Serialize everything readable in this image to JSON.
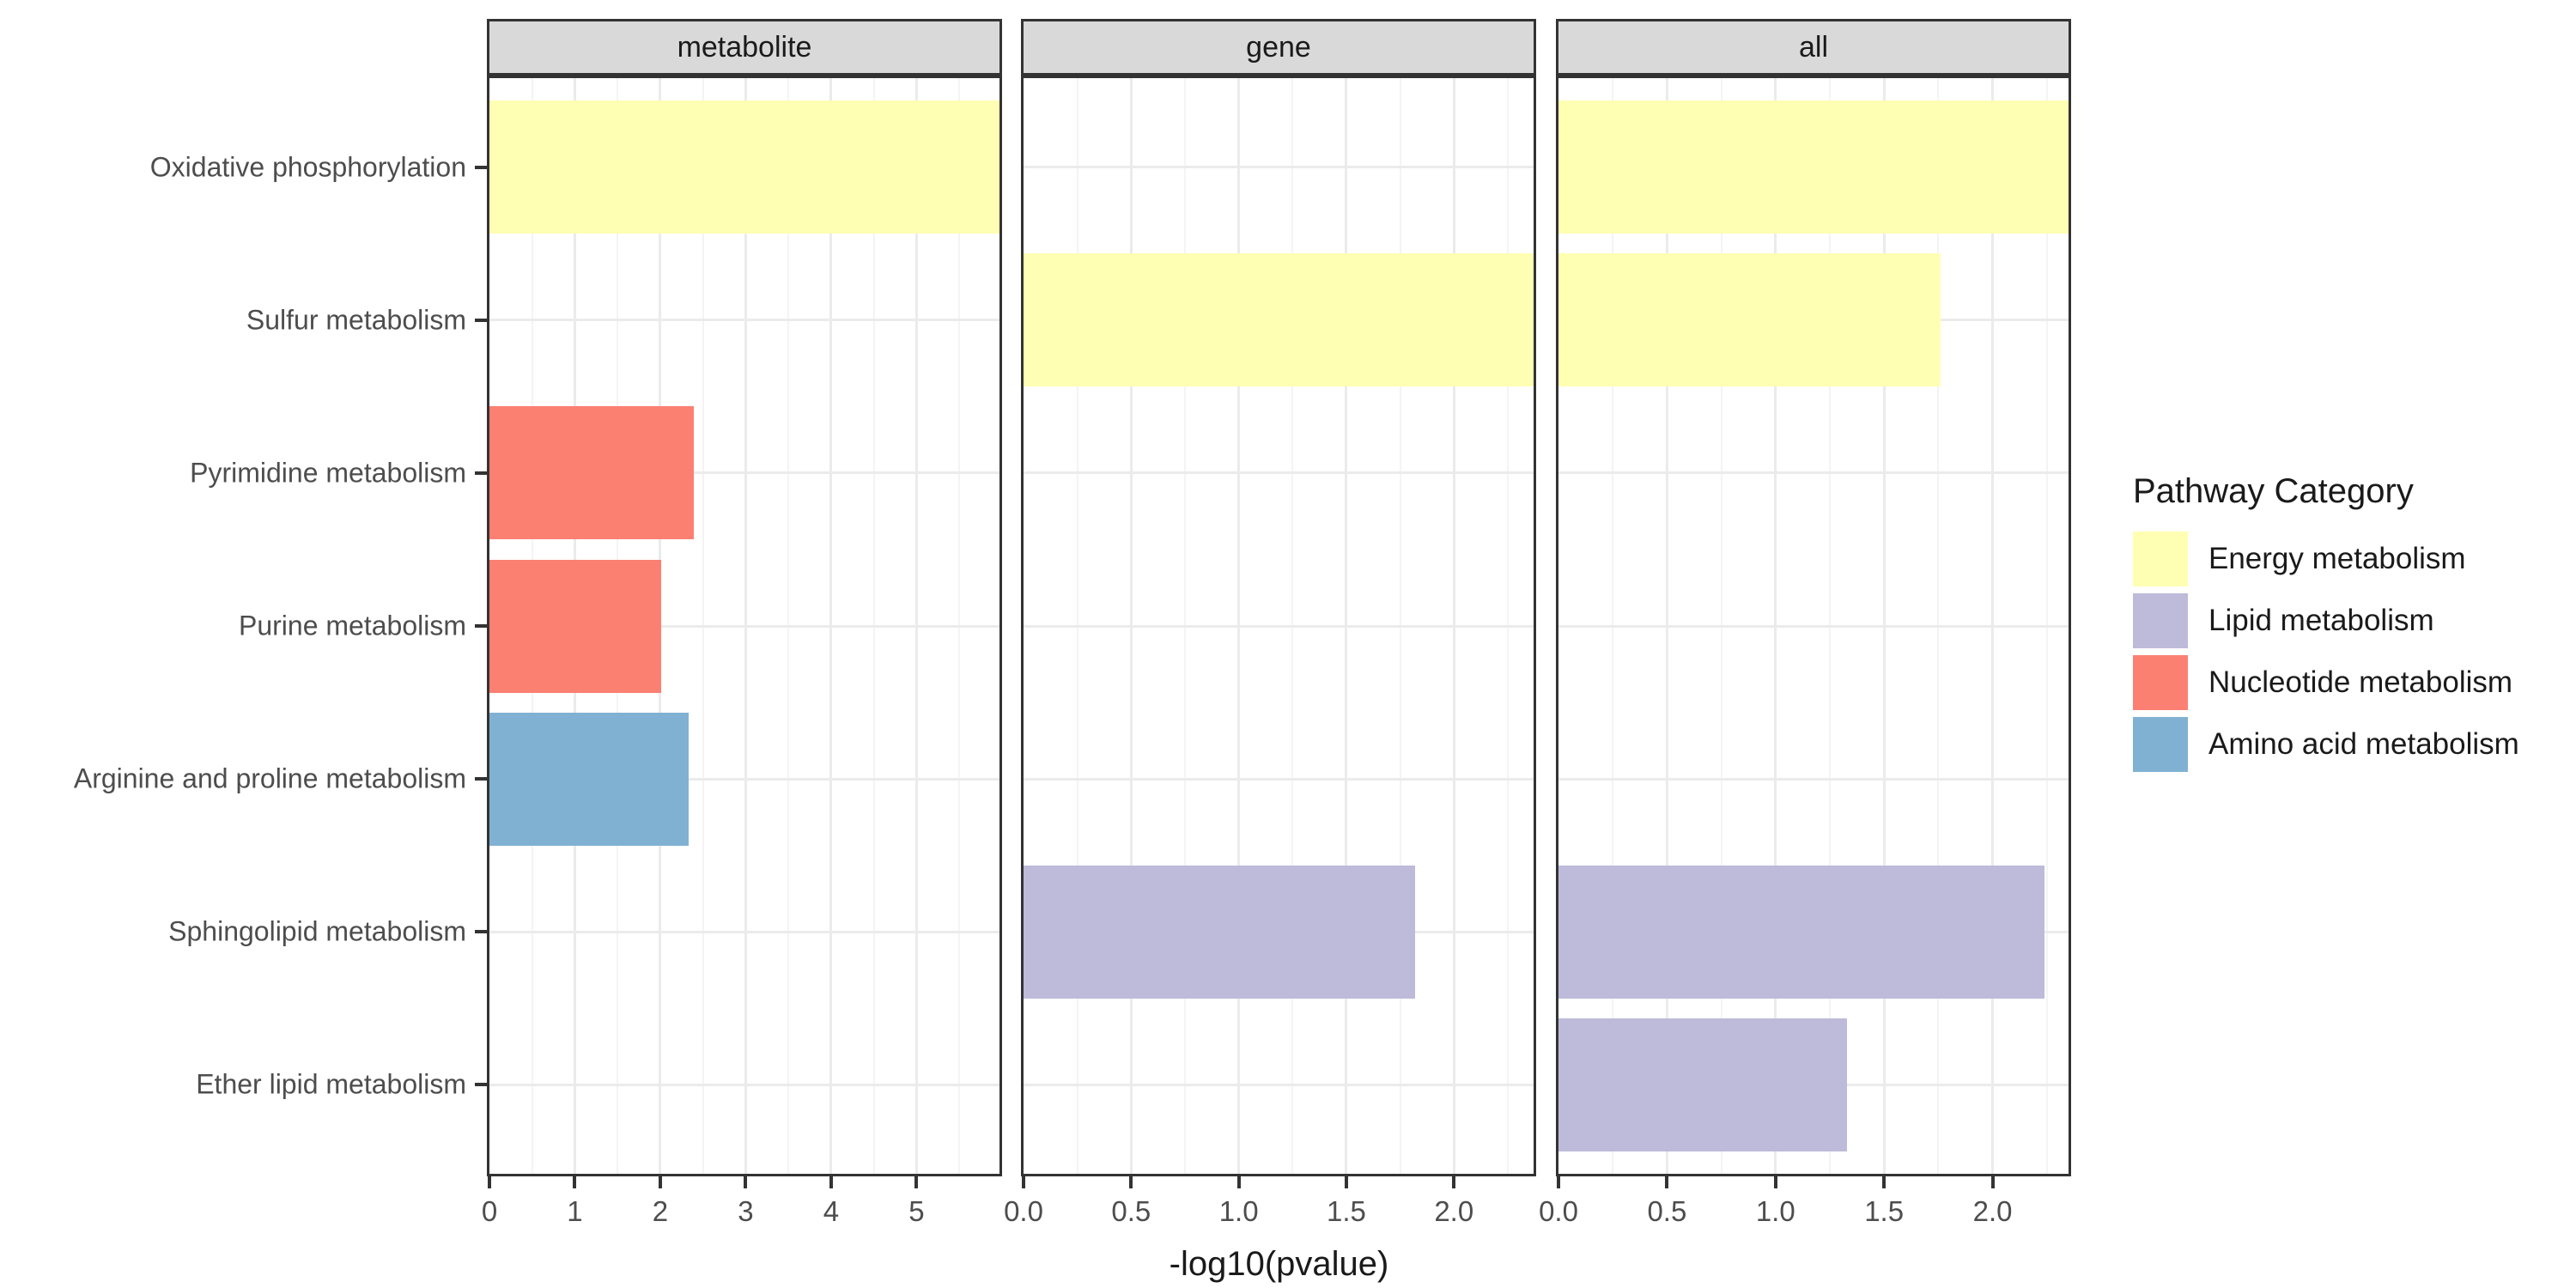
{
  "chart_data": {
    "type": "bar",
    "orientation": "horizontal",
    "title": "",
    "xlabel": "-log10(pvalue)",
    "ylabel": "",
    "grid": true,
    "categories": [
      "Oxidative phosphorylation",
      "Sulfur metabolism",
      "Pyrimidine metabolism",
      "Purine metabolism",
      "Arginine and proline metabolism",
      "Sphingolipid metabolism",
      "Ether lipid metabolism"
    ],
    "facets": [
      {
        "label": "metabolite",
        "xlim": [
          0,
          5.97
        ],
        "breaks": [
          0,
          1,
          2,
          3,
          4,
          5
        ],
        "break_labels": [
          "0",
          "1",
          "2",
          "3",
          "4",
          "5"
        ],
        "minor_step": 0.5,
        "bars": [
          {
            "category": "Oxidative phosphorylation",
            "value": 5.97,
            "color_key": "Energy metabolism"
          },
          {
            "category": "Pyrimidine metabolism",
            "value": 2.39,
            "color_key": "Nucleotide metabolism"
          },
          {
            "category": "Purine metabolism",
            "value": 2.01,
            "color_key": "Nucleotide metabolism"
          },
          {
            "category": "Arginine and proline metabolism",
            "value": 2.33,
            "color_key": "Amino acid metabolism"
          }
        ]
      },
      {
        "label": "gene",
        "xlim": [
          0,
          2.37
        ],
        "breaks": [
          0,
          0.5,
          1.0,
          1.5,
          2.0
        ],
        "break_labels": [
          "0.0",
          "0.5",
          "1.0",
          "1.5",
          "2.0"
        ],
        "minor_step": 0.25,
        "bars": [
          {
            "category": "Sulfur metabolism",
            "value": 2.37,
            "color_key": "Energy metabolism"
          },
          {
            "category": "Sphingolipid metabolism",
            "value": 1.82,
            "color_key": "Lipid metabolism"
          }
        ]
      },
      {
        "label": "all",
        "xlim": [
          0,
          2.35
        ],
        "breaks": [
          0,
          0.5,
          1.0,
          1.5,
          2.0
        ],
        "break_labels": [
          "0.0",
          "0.5",
          "1.0",
          "1.5",
          "2.0"
        ],
        "minor_step": 0.25,
        "bars": [
          {
            "category": "Oxidative phosphorylation",
            "value": 2.35,
            "color_key": "Energy metabolism"
          },
          {
            "category": "Sulfur metabolism",
            "value": 1.76,
            "color_key": "Energy metabolism"
          },
          {
            "category": "Sphingolipid metabolism",
            "value": 2.24,
            "color_key": "Lipid metabolism"
          },
          {
            "category": "Ether lipid metabolism",
            "value": 1.33,
            "color_key": "Lipid metabolism"
          }
        ]
      }
    ],
    "legend": {
      "title": "Pathway Category",
      "position": "right",
      "entries": [
        {
          "label": "Energy metabolism",
          "color": "#FFFFB3"
        },
        {
          "label": "Lipid metabolism",
          "color": "#BEBADA"
        },
        {
          "label": "Nucleotide metabolism",
          "color": "#FB8072"
        },
        {
          "label": "Amino acid metabolism",
          "color": "#80B1D3"
        }
      ]
    }
  },
  "colors": {
    "strip_fill": "#D9D9D9",
    "panel_border": "#333333",
    "grid_major": "#EBEBEB",
    "grid_minor": "#F4F4F4",
    "tick": "#333333",
    "tick_label": "#4D4D4D",
    "background": "#FFFFFF"
  }
}
